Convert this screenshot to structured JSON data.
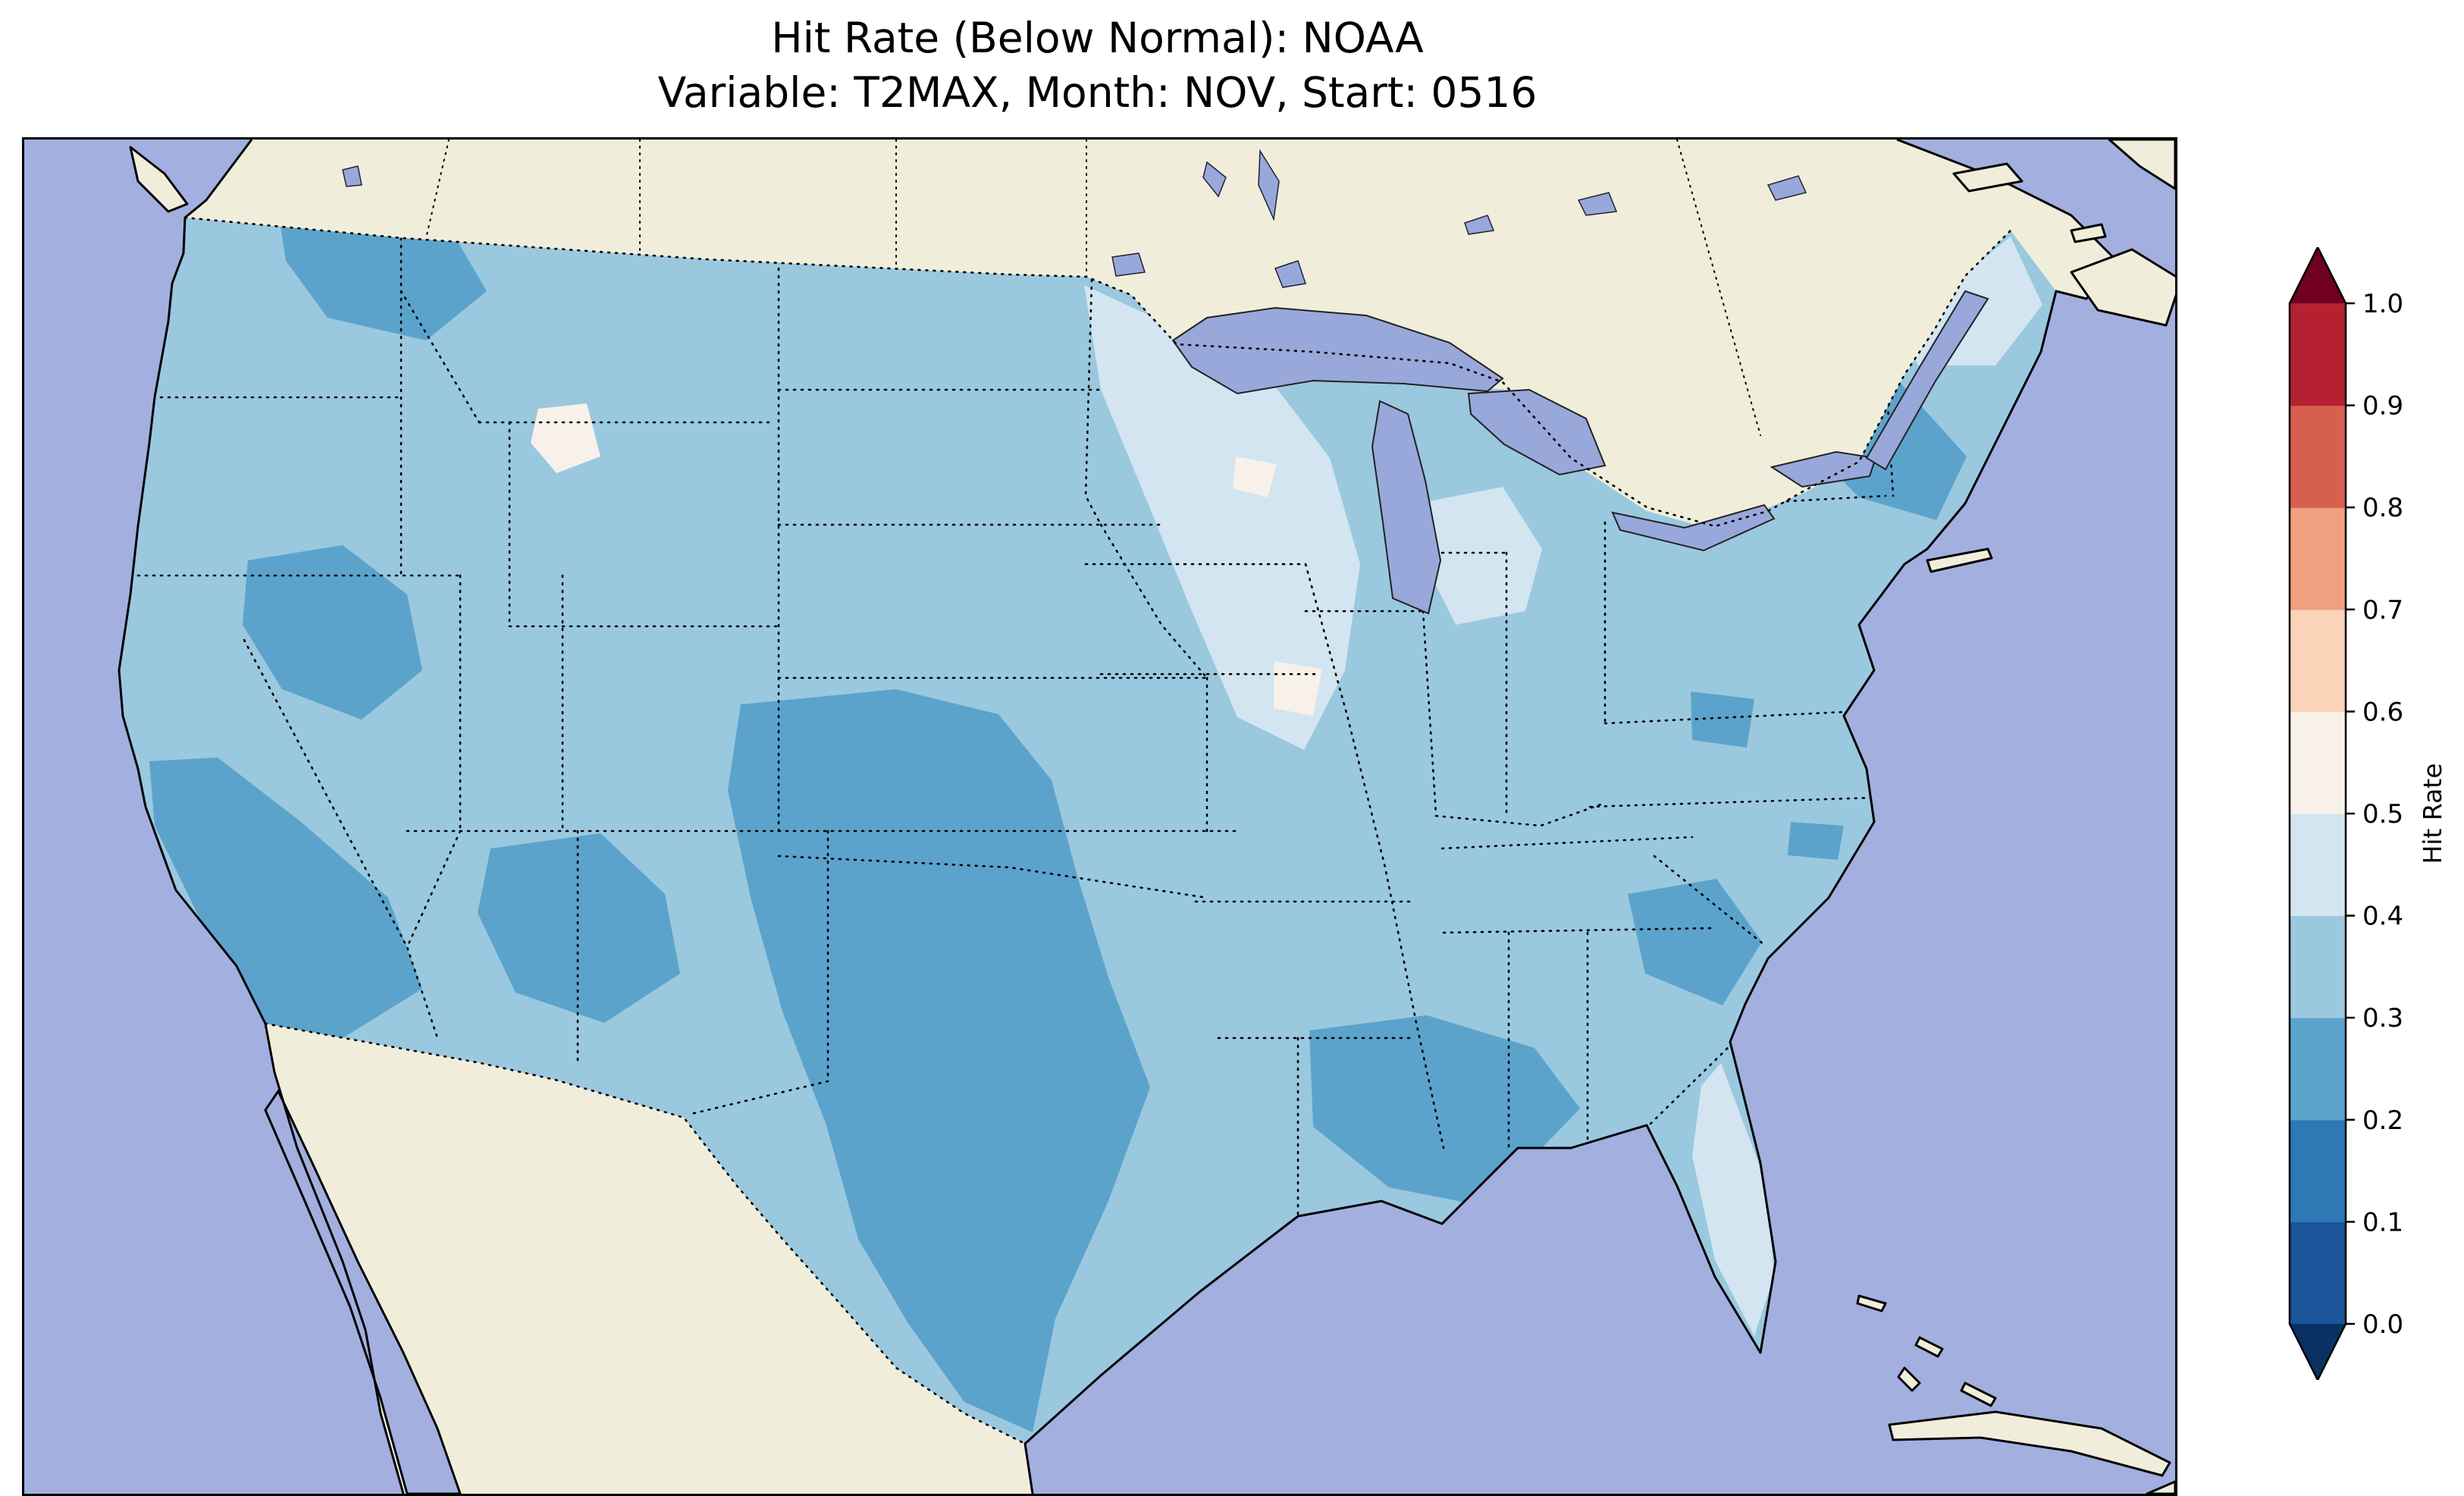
{
  "title": {
    "line1": "Hit Rate (Below Normal): NOAA",
    "line2": "Variable: T2MAX, Month: NOV, Start: 0516"
  },
  "colors": {
    "ocean": "#a3afdf",
    "land": "#f0eedb",
    "lake": "#98a8da",
    "coastline": "#000000",
    "figure_background": "#ffffff"
  },
  "chart_data": {
    "type": "heatmap",
    "title": "Hit Rate (Below Normal): NOAA",
    "subtitle": "Variable: T2MAX, Month: NOV, Start: 0516",
    "metric": "Hit Rate (Below Normal)",
    "source": "NOAA",
    "variable": "T2MAX",
    "month": "NOV",
    "start": "0516",
    "region": "Continental United States with surrounding North America",
    "colorbar": {
      "label": "Hit Rate",
      "range": [
        0.0,
        1.0
      ],
      "ticks": [
        "0.0",
        "0.1",
        "0.2",
        "0.3",
        "0.4",
        "0.5",
        "0.6",
        "0.7",
        "0.8",
        "0.9",
        "1.0"
      ],
      "bin_edges": [
        0.0,
        0.1,
        0.2,
        0.3,
        0.4,
        0.5,
        0.6,
        0.7,
        0.8,
        0.9,
        1.0
      ],
      "bin_colors_bottom_to_top": [
        "#1a5499",
        "#2e78b5",
        "#5ba3cb",
        "#9ac8df",
        "#d2e5f0",
        "#f7f1e9",
        "#fbd3b9",
        "#f0a07e",
        "#d75f4d",
        "#b52131"
      ],
      "extend_under_color": "#0a3164",
      "extend_over_color": "#70001f",
      "orientation": "vertical",
      "position": "right"
    },
    "bins": {
      "b02_03": "#5ba3cb",
      "b03_04": "#9ac8df",
      "b04_05": "#d2e5f0",
      "b05_06": "#f7f1e9"
    },
    "regions": [
      {
        "name": "Most of CONUS (background field)",
        "hit_rate_bin": "0.3-0.4"
      },
      {
        "name": "Northern Rockies (N Idaho / W Montana)",
        "hit_rate_bin": "0.2-0.3"
      },
      {
        "name": "Coastal and Southern California",
        "hit_rate_bin": "0.2-0.3"
      },
      {
        "name": "Nevada / Utah",
        "hit_rate_bin": "0.2-0.3"
      },
      {
        "name": "Central Arizona / New Mexico",
        "hit_rate_bin": "0.2-0.3"
      },
      {
        "name": "West Texas / Oklahoma / SE Colorado",
        "hit_rate_bin": "0.2-0.3"
      },
      {
        "name": "Gulf South (Louisiana / Mississippi / Alabama)",
        "hit_rate_bin": "0.2-0.3"
      },
      {
        "name": "Georgia / Carolinas coast",
        "hit_rate_bin": "0.2-0.3"
      },
      {
        "name": "Northeast (New York / Vermont / Massachusetts)",
        "hit_rate_bin": "0.2-0.3"
      },
      {
        "name": "Upper Midwest (Minnesota / Wisconsin / Iowa / Illinois)",
        "hit_rate_bin": "0.4-0.5"
      },
      {
        "name": "Lower Michigan",
        "hit_rate_bin": "0.4-0.5"
      },
      {
        "name": "Northern New England (Maine / New Hampshire)",
        "hit_rate_bin": "0.4-0.5"
      },
      {
        "name": "Florida peninsula",
        "hit_rate_bin": "0.4-0.5"
      },
      {
        "name": "Isolated spots (Montana, Illinois, Wisconsin)",
        "hit_rate_bin": "0.5-0.6"
      }
    ],
    "map_style": {
      "state_borders": "black dotted",
      "country_borders": "black dotted",
      "coastline": "black solid"
    }
  }
}
